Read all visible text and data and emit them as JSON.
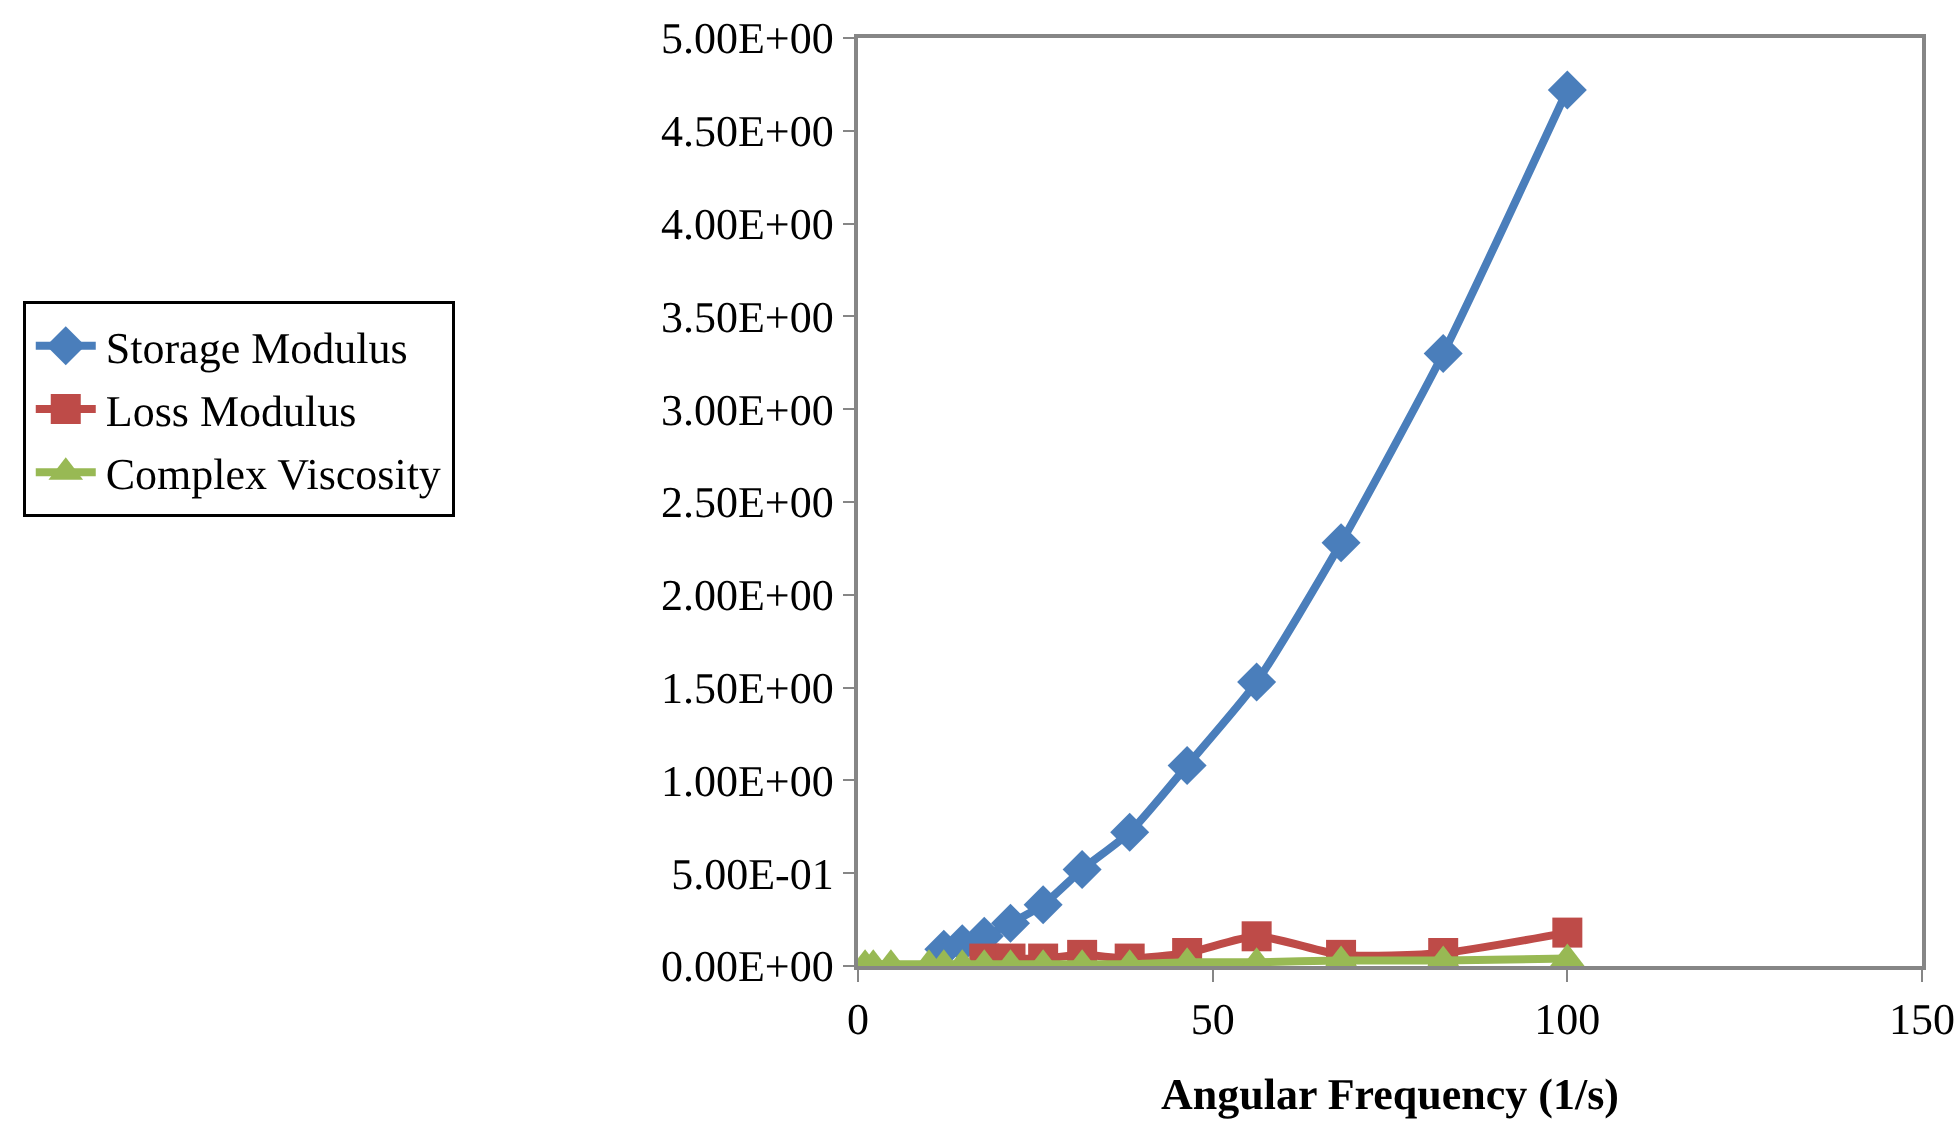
{
  "chart_data": {
    "type": "line",
    "xlabel": "Angular Frequency (1/s)",
    "x": [
      1,
      2.15,
      4.64,
      10,
      12.1,
      14.7,
      17.8,
      21.5,
      26.1,
      31.6,
      38.3,
      46.4,
      56.2,
      68.1,
      82.5,
      100
    ],
    "series": [
      {
        "name": "Storage Modulus",
        "color": "#4a7ebb",
        "marker": "diamond",
        "values": [
          null,
          null,
          null,
          null,
          0.09,
          0.12,
          0.16,
          0.23,
          0.33,
          0.52,
          0.72,
          1.08,
          1.53,
          2.28,
          3.3,
          4.72
        ]
      },
      {
        "name": "Loss Modulus",
        "color": "#be4b48",
        "marker": "square",
        "values": [
          null,
          null,
          null,
          null,
          null,
          null,
          0.04,
          0.04,
          0.04,
          0.06,
          0.04,
          0.07,
          0.16,
          0.06,
          0.07,
          0.18
        ]
      },
      {
        "name": "Complex Viscosity",
        "color": "#98b954",
        "marker": "triangle",
        "values": [
          0.01,
          0.01,
          0.01,
          0.01,
          0.01,
          0.01,
          0.01,
          0.01,
          0.01,
          0.01,
          0.01,
          0.02,
          0.02,
          0.03,
          0.03,
          0.04
        ]
      }
    ],
    "xlim": [
      0,
      150
    ],
    "xticks": [
      0,
      50,
      100,
      150
    ],
    "ylim": [
      0,
      5
    ],
    "yticks": [
      {
        "value": 0,
        "label": "0.00E+00"
      },
      {
        "value": 0.5,
        "label": "5.00E-01"
      },
      {
        "value": 1,
        "label": "1.00E+00"
      },
      {
        "value": 1.5,
        "label": "1.50E+00"
      },
      {
        "value": 2,
        "label": "2.00E+00"
      },
      {
        "value": 2.5,
        "label": "2.50E+00"
      },
      {
        "value": 3,
        "label": "3.00E+00"
      },
      {
        "value": 3.5,
        "label": "3.50E+00"
      },
      {
        "value": 4,
        "label": "4.00E+00"
      },
      {
        "value": 4.5,
        "label": "4.50E+00"
      },
      {
        "value": 5,
        "label": "5.00E+00"
      }
    ],
    "grid": false,
    "legend": "left",
    "line_style": "solid"
  }
}
